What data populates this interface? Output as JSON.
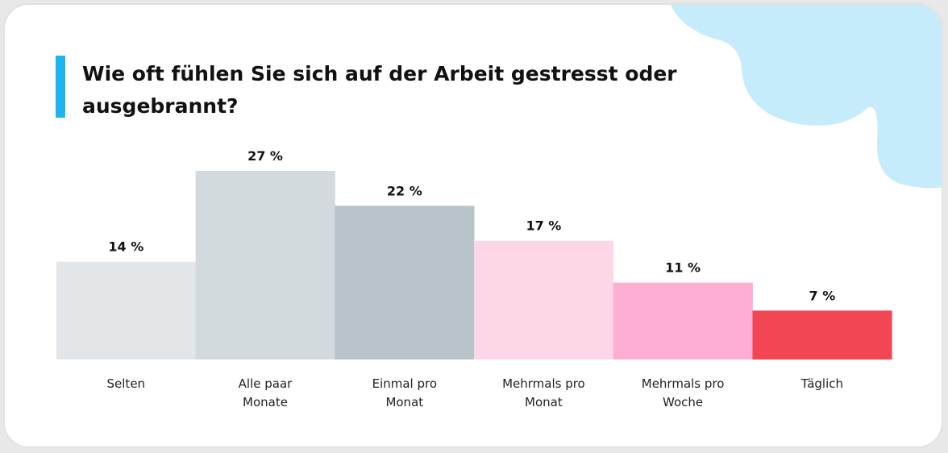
{
  "title": "Wie oft fühlen Sie sich auf der Arbeit gestresst oder ausgebrannt?",
  "colors": {
    "accent": "#1eb4ef",
    "blob": "#c6ebfb",
    "bars": [
      "#e2e6e9",
      "#d2dadd",
      "#b8c3ca",
      "#fdd7e7",
      "#fdaed2",
      "#f24655"
    ]
  },
  "chart_data": {
    "type": "bar",
    "categories": [
      [
        "Selten"
      ],
      [
        "Alle paar",
        "Monate"
      ],
      [
        "Einmal pro",
        "Monat"
      ],
      [
        "Mehrmals pro",
        "Monat"
      ],
      [
        "Mehrmals pro",
        "Woche"
      ],
      [
        "Täglich"
      ]
    ],
    "values": [
      14,
      27,
      22,
      17,
      11,
      7
    ],
    "value_labels": [
      "14 %",
      "27 %",
      "22 %",
      "17 %",
      "11 %",
      "7 %"
    ],
    "ylim": [
      0,
      27
    ]
  }
}
